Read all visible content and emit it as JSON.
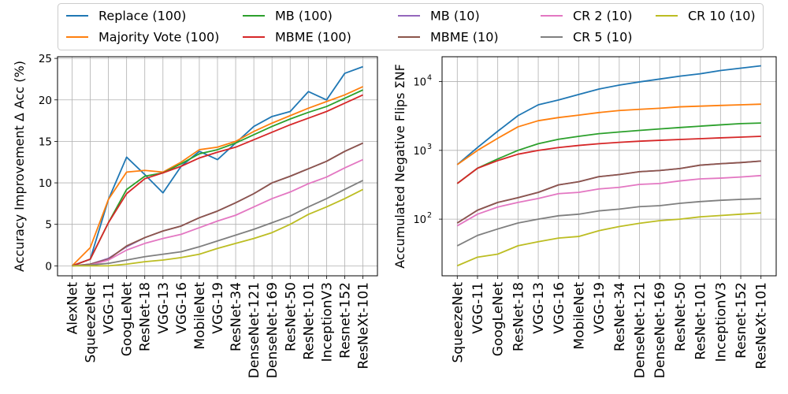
{
  "legend": {
    "entries": [
      {
        "label": "Replace (100)",
        "color": "#1f77b4"
      },
      {
        "label": "Majority Vote (100)",
        "color": "#ff7f0e"
      },
      {
        "label": "MB (100)",
        "color": "#2ca02c"
      },
      {
        "label": "MBME (100)",
        "color": "#d62728"
      },
      {
        "label": "MB (10)",
        "color": "#9467bd"
      },
      {
        "label": "MBME (10)",
        "color": "#8c564b"
      },
      {
        "label": "CR 2 (10)",
        "color": "#e377c2"
      },
      {
        "label": "CR 5 (10)",
        "color": "#7f7f7f"
      },
      {
        "label": "CR 10 (10)",
        "color": "#bcbd22"
      }
    ]
  },
  "chart_data": [
    {
      "type": "line",
      "xlabel": "",
      "ylabel": "Accuracy Improvement Δ Acc (%)",
      "ylim": [
        -1.2,
        25.2
      ],
      "yticks": [
        0,
        5,
        10,
        15,
        20,
        25
      ],
      "grid": true,
      "categories": [
        "AlexNet",
        "SqueezeNet",
        "VGG-11",
        "GoogLeNet",
        "ResNet-18",
        "VGG-13",
        "VGG-16",
        "MobileNet",
        "VGG-19",
        "ResNet-34",
        "DenseNet-121",
        "DenseNet-169",
        "ResNet-50",
        "ResNet-101",
        "InceptionV3",
        "Resnet-152",
        "ResNeXt-101"
      ],
      "series": [
        {
          "name": "Replace (100)",
          "color": "#1f77b4",
          "values": [
            0,
            0.8,
            8.0,
            13.1,
            11.0,
            8.8,
            12.0,
            13.8,
            12.8,
            14.8,
            16.8,
            18.0,
            18.6,
            21.0,
            20.0,
            23.2,
            24.0
          ]
        },
        {
          "name": "Majority Vote (100)",
          "color": "#ff7f0e",
          "values": [
            0,
            2.2,
            8.0,
            11.3,
            11.5,
            11.3,
            12.5,
            14.0,
            14.3,
            15.0,
            16.2,
            17.2,
            18.1,
            19.0,
            19.8,
            20.6,
            21.6
          ]
        },
        {
          "name": "MB (100)",
          "color": "#2ca02c",
          "values": [
            0,
            0.8,
            5.2,
            9.2,
            10.8,
            11.2,
            12.3,
            13.5,
            14.0,
            14.8,
            15.8,
            16.8,
            17.7,
            18.5,
            19.2,
            20.2,
            21.2
          ]
        },
        {
          "name": "MBME (100)",
          "color": "#d62728",
          "values": [
            0,
            0.8,
            5.2,
            8.7,
            10.5,
            11.2,
            12.0,
            13.0,
            13.7,
            14.3,
            15.2,
            16.1,
            17.0,
            17.8,
            18.6,
            19.6,
            20.6
          ]
        },
        {
          "name": "MB (10)",
          "color": "#9467bd",
          "values": [
            0,
            0.2,
            0.9,
            2.3,
            3.4,
            4.2,
            4.8,
            5.8,
            6.6,
            7.6,
            8.7,
            10.0,
            10.8,
            11.7,
            12.6,
            13.8,
            14.8
          ]
        },
        {
          "name": "MBME (10)",
          "color": "#8c564b",
          "values": [
            0,
            0.2,
            0.8,
            2.4,
            3.4,
            4.2,
            4.8,
            5.8,
            6.6,
            7.6,
            8.7,
            10.0,
            10.8,
            11.7,
            12.6,
            13.8,
            14.8
          ]
        },
        {
          "name": "CR 2 (10)",
          "color": "#e377c2",
          "values": [
            0,
            0.1,
            0.7,
            1.9,
            2.7,
            3.3,
            3.8,
            4.6,
            5.4,
            6.1,
            7.1,
            8.1,
            8.9,
            9.9,
            10.7,
            11.8,
            12.8
          ]
        },
        {
          "name": "CR 5 (10)",
          "color": "#7f7f7f",
          "values": [
            0,
            0.1,
            0.3,
            0.7,
            1.1,
            1.4,
            1.7,
            2.3,
            3.0,
            3.7,
            4.4,
            5.2,
            6.0,
            7.1,
            8.1,
            9.2,
            10.3
          ]
        },
        {
          "name": "CR 10 (10)",
          "color": "#bcbd22",
          "values": [
            0,
            0.0,
            0.0,
            0.2,
            0.5,
            0.7,
            1.0,
            1.4,
            2.1,
            2.7,
            3.3,
            4.0,
            5.0,
            6.2,
            7.1,
            8.1,
            9.2
          ]
        }
      ]
    },
    {
      "type": "line",
      "xlabel": "",
      "ylabel": "Accumulated Negative Flips ΣNF",
      "yscale": "log",
      "ylim": [
        15,
        23000
      ],
      "yticks": [
        100,
        1000,
        10000
      ],
      "ytick_labels": [
        {
          "base": "10",
          "exp": "2"
        },
        {
          "base": "10",
          "exp": "3"
        },
        {
          "base": "10",
          "exp": "4"
        }
      ],
      "grid": true,
      "categories": [
        "SqueezeNet",
        "VGG-11",
        "GoogLeNet",
        "ResNet-18",
        "VGG-13",
        "VGG-16",
        "MobileNet",
        "VGG-19",
        "ResNet-34",
        "DenseNet-121",
        "DenseNet-169",
        "ResNet-50",
        "ResNet-101",
        "InceptionV3",
        "Resnet-152",
        "ResNeXt-101"
      ],
      "series": [
        {
          "name": "Replace (100)",
          "color": "#1f77b4",
          "values": [
            620,
            1100,
            1900,
            3200,
            4600,
            5400,
            6500,
            7800,
            8900,
            9900,
            10900,
            12000,
            13000,
            14500,
            15700,
            17000
          ]
        },
        {
          "name": "Majority Vote (100)",
          "color": "#ff7f0e",
          "values": [
            620,
            1000,
            1500,
            2200,
            2700,
            3000,
            3250,
            3550,
            3800,
            3950,
            4100,
            4300,
            4400,
            4500,
            4600,
            4700
          ]
        },
        {
          "name": "MB (100)",
          "color": "#2ca02c",
          "values": [
            330,
            550,
            750,
            1000,
            1250,
            1450,
            1600,
            1750,
            1850,
            1950,
            2050,
            2150,
            2250,
            2350,
            2450,
            2500
          ]
        },
        {
          "name": "MBME (100)",
          "color": "#d62728",
          "values": [
            330,
            550,
            710,
            880,
            1000,
            1100,
            1180,
            1250,
            1310,
            1360,
            1400,
            1440,
            1480,
            1520,
            1560,
            1600
          ]
        },
        {
          "name": "MB (10)",
          "color": "#9467bd",
          "values": [
            88,
            135,
            175,
            205,
            245,
            315,
            350,
            415,
            445,
            490,
            510,
            545,
            610,
            640,
            665,
            700
          ]
        },
        {
          "name": "MBME (10)",
          "color": "#8c564b",
          "values": [
            88,
            135,
            175,
            205,
            245,
            315,
            350,
            415,
            445,
            490,
            510,
            545,
            610,
            640,
            665,
            700
          ]
        },
        {
          "name": "CR 2 (10)",
          "color": "#e377c2",
          "values": [
            80,
            118,
            150,
            175,
            200,
            235,
            245,
            275,
            290,
            320,
            330,
            360,
            385,
            395,
            410,
            430
          ]
        },
        {
          "name": "CR 5 (10)",
          "color": "#7f7f7f",
          "values": [
            41,
            58,
            72,
            88,
            100,
            112,
            118,
            132,
            140,
            152,
            157,
            170,
            180,
            188,
            194,
            198
          ]
        },
        {
          "name": "CR 10 (10)",
          "color": "#bcbd22",
          "values": [
            21,
            28,
            31,
            41,
            47,
            53,
            56,
            68,
            78,
            87,
            95,
            100,
            108,
            113,
            118,
            123
          ]
        }
      ]
    }
  ]
}
